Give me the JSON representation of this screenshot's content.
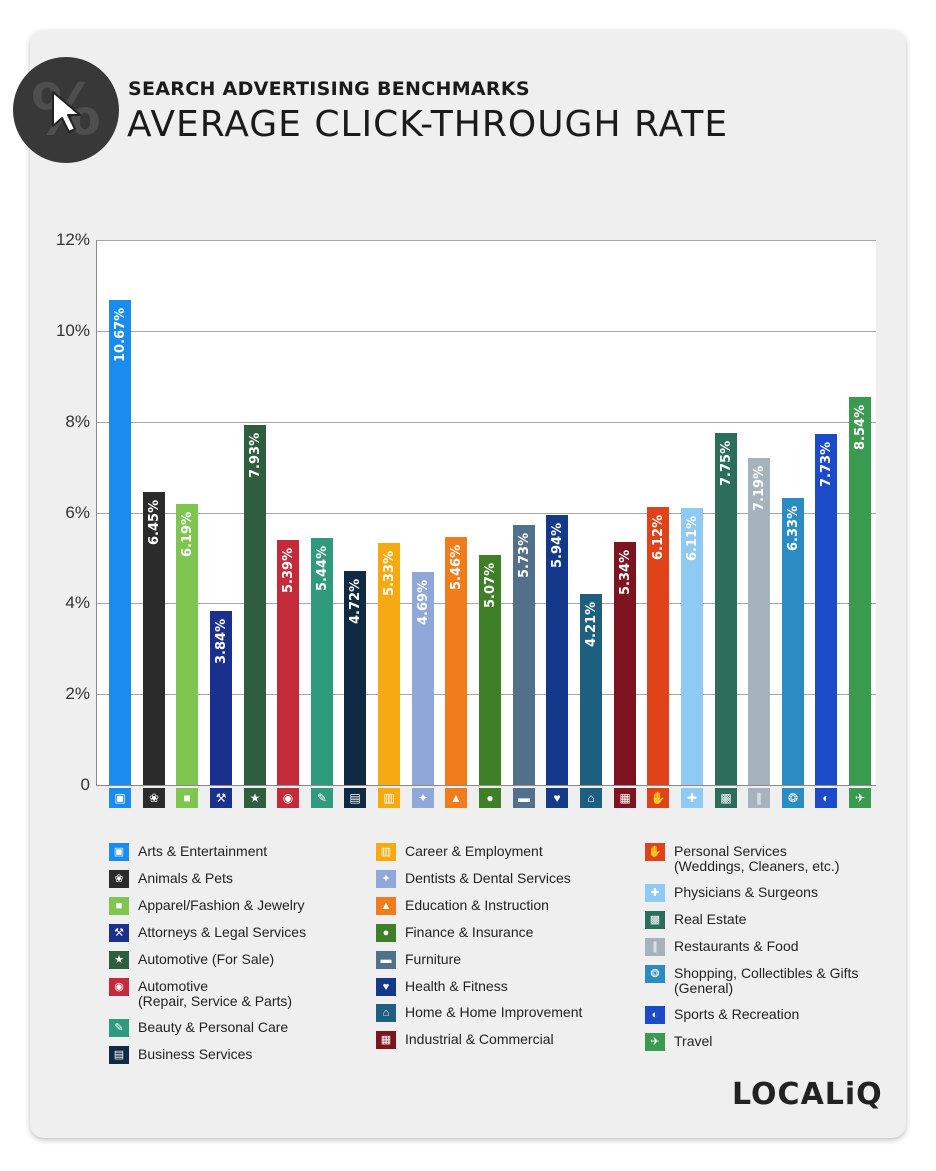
{
  "header": {
    "subtitle": "SEARCH ADVERTISING BENCHMARKS",
    "title": "AVERAGE CLICK-THROUGH RATE",
    "badge_symbol": "%"
  },
  "logo": "LOCALiQ",
  "chart_data": {
    "type": "bar",
    "title": "AVERAGE CLICK-THROUGH RATE",
    "ylim": [
      0,
      12
    ],
    "grid": true,
    "legend_placement": "bottom",
    "y_ticks": [
      "0",
      "2%",
      "4%",
      "6%",
      "8%",
      "10%",
      "12%"
    ],
    "categories": [
      "Arts & Entertainment",
      "Animals & Pets",
      "Apparel/Fashion & Jewelry",
      "Attorneys & Legal Services",
      "Automotive (For Sale)",
      "Automotive (Repair, Service & Parts)",
      "Beauty & Personal Care",
      "Business Services",
      "Career & Employment",
      "Dentists & Dental Services",
      "Education & Instruction",
      "Finance & Insurance",
      "Furniture",
      "Health & Fitness",
      "Home & Home Improvement",
      "Industrial & Commercial",
      "Personal Services (Weddings, Cleaners, etc.)",
      "Physicians & Surgeons",
      "Real Estate",
      "Restaurants & Food",
      "Shopping, Collectibles & Gifts (General)",
      "Sports & Recreation",
      "Travel"
    ],
    "values": [
      10.67,
      6.45,
      6.19,
      3.84,
      7.93,
      5.39,
      5.44,
      4.72,
      5.33,
      4.69,
      5.46,
      5.07,
      5.73,
      5.94,
      4.21,
      5.34,
      6.12,
      6.11,
      7.75,
      7.19,
      6.33,
      7.73,
      8.54
    ],
    "value_labels": [
      "10.67%",
      "6.45%",
      "6.19%",
      "3.84%",
      "7.93%",
      "5.39%",
      "5.44%",
      "4.72%",
      "5.33%",
      "4.69%",
      "5.46%",
      "5.07%",
      "5.73%",
      "5.94%",
      "4.21%",
      "5.34%",
      "6.12%",
      "6.11%",
      "7.75%",
      "7.19%",
      "6.33%",
      "7.73%",
      "8.54%"
    ],
    "colors": [
      "#1a8cf0",
      "#2b2b2b",
      "#7ec650",
      "#1b2f8c",
      "#2f5e3f",
      "#c42a3a",
      "#2f9a7e",
      "#0f2a42",
      "#f6aa12",
      "#8fa8d9",
      "#f07c1b",
      "#3f7f28",
      "#52708a",
      "#15398a",
      "#1e5f7f",
      "#7e1420",
      "#e0421a",
      "#8fcaf4",
      "#2b6e59",
      "#a6b3bc",
      "#2a8cc2",
      "#1b4bc9",
      "#3a9a4f"
    ],
    "icons": [
      "▣",
      "❀",
      "■",
      "⚒",
      "★",
      "◉",
      "✎",
      "▤",
      "▥",
      "✦",
      "▲",
      "●",
      "▬",
      "♥",
      "⌂",
      "▦",
      "✋",
      "✚",
      "▩",
      "∥",
      "❂",
      "◐",
      "✈"
    ],
    "legend_labels": [
      [
        "Arts & Entertainment"
      ],
      [
        "Animals & Pets"
      ],
      [
        "Apparel/Fashion & Jewelry"
      ],
      [
        "Attorneys & Legal Services"
      ],
      [
        "Automotive (For Sale)"
      ],
      [
        "Automotive",
        "(Repair, Service & Parts)"
      ],
      [
        "Beauty & Personal Care"
      ],
      [
        "Business Services"
      ],
      [
        "Career & Employment"
      ],
      [
        "Dentists & Dental Services"
      ],
      [
        "Education & Instruction"
      ],
      [
        "Finance & Insurance"
      ],
      [
        "Furniture"
      ],
      [
        "Health & Fitness"
      ],
      [
        "Home & Home Improvement"
      ],
      [
        "Industrial & Commercial"
      ],
      [
        "Personal Services",
        "(Weddings, Cleaners, etc.)"
      ],
      [
        "Physicians & Surgeons"
      ],
      [
        "Real Estate"
      ],
      [
        "Restaurants & Food"
      ],
      [
        "Shopping, Collectibles & Gifts",
        "(General)"
      ],
      [
        "Sports & Recreation"
      ],
      [
        "Travel"
      ]
    ]
  }
}
